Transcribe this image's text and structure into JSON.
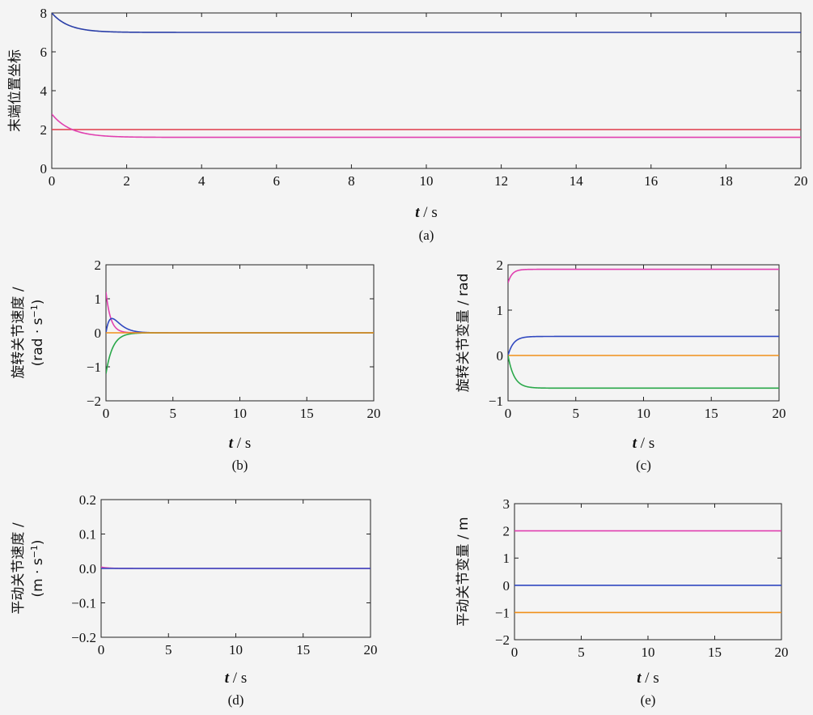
{
  "chart_data": [
    {
      "id": "a",
      "type": "line",
      "caption": "(a)",
      "xlabel_var": "t",
      "xlabel_unit": " / s",
      "ylabel": "末端位置坐标",
      "xlim": [
        0,
        20
      ],
      "ylim": [
        0,
        8
      ],
      "xticks": [
        0,
        2,
        4,
        6,
        8,
        10,
        12,
        14,
        16,
        18,
        20
      ],
      "yticks": [
        0,
        2,
        4,
        6,
        8
      ],
      "series": [
        {
          "color": "#2b3fa8",
          "start": 8.0,
          "end": 7.0,
          "tau": 0.45
        },
        {
          "color": "#e03a4a",
          "start": 2.0,
          "end": 2.0,
          "tau": 0.5
        },
        {
          "color": "#e040b0",
          "start": 2.8,
          "end": 1.6,
          "tau": 0.5
        }
      ]
    },
    {
      "id": "b",
      "type": "line",
      "caption": "(b)",
      "xlabel_var": "t",
      "xlabel_unit": " / s",
      "ylabel": "旋转关节速度 /",
      "ylabel2": "(rad · s",
      "ylabel2_sup": "−1",
      "ylabel2_end": ")",
      "xlim": [
        0,
        20
      ],
      "ylim": [
        -2,
        2
      ],
      "xticks": [
        0,
        5,
        10,
        15,
        20
      ],
      "yticks": [
        -2,
        -1,
        0,
        1,
        2
      ],
      "series": [
        {
          "color": "#e040b0",
          "shape": "decay",
          "peak": 1.2,
          "tau": 0.35
        },
        {
          "color": "#3048c0",
          "shape": "pulse",
          "peak": 0.42,
          "tau": 0.45
        },
        {
          "color": "#2aa84a",
          "shape": "decay",
          "peak": -1.2,
          "tau": 0.5
        },
        {
          "color": "#f0901a",
          "shape": "zero",
          "peak": 0,
          "tau": 1
        }
      ]
    },
    {
      "id": "c",
      "type": "line",
      "caption": "(c)",
      "xlabel_var": "t",
      "xlabel_unit": " / s",
      "ylabel": "旋转关节变量 / rad",
      "xlim": [
        0,
        20
      ],
      "ylim": [
        -1,
        2
      ],
      "xticks": [
        0,
        5,
        10,
        15,
        20
      ],
      "yticks": [
        -1,
        0,
        1,
        2
      ],
      "series": [
        {
          "color": "#e040b0",
          "start": 1.6,
          "end": 1.9,
          "tau": 0.3
        },
        {
          "color": "#3048c0",
          "start": 0.0,
          "end": 0.42,
          "tau": 0.4
        },
        {
          "color": "#f0901a",
          "start": 0.0,
          "end": 0.0,
          "tau": 1
        },
        {
          "color": "#2aa84a",
          "start": 0.0,
          "end": -0.72,
          "tau": 0.45
        }
      ]
    },
    {
      "id": "d",
      "type": "line",
      "caption": "(d)",
      "xlabel_var": "t",
      "xlabel_unit": " / s",
      "ylabel": "平动关节速度 /",
      "ylabel2": "(m · s",
      "ylabel2_sup": "−1",
      "ylabel2_end": ")",
      "xlim": [
        0,
        20
      ],
      "ylim": [
        -0.2,
        0.2
      ],
      "xticks": [
        0,
        5,
        10,
        15,
        20
      ],
      "yticks": [
        -0.2,
        -0.1,
        0.0,
        0.1,
        0.2
      ],
      "ytick_labels": [
        "−0.2",
        "−0.1",
        "0.0",
        "0.1",
        "0.2"
      ],
      "series": [
        {
          "color": "#e040b0",
          "shape": "decay",
          "peak": 0.004,
          "tau": 0.5
        },
        {
          "color": "#3048c0",
          "shape": "zero",
          "peak": 0,
          "tau": 1
        }
      ]
    },
    {
      "id": "e",
      "type": "line",
      "caption": "(e)",
      "xlabel_var": "t",
      "xlabel_unit": " / s",
      "ylabel": "平动关节变量 / m",
      "xlim": [
        0,
        20
      ],
      "ylim": [
        -2,
        3
      ],
      "xticks": [
        0,
        5,
        10,
        15,
        20
      ],
      "yticks": [
        -2,
        -1,
        0,
        1,
        2,
        3
      ],
      "series": [
        {
          "color": "#e040b0",
          "start": 2.0,
          "end": 2.0,
          "tau": 1
        },
        {
          "color": "#3048c0",
          "start": 0.0,
          "end": 0.0,
          "tau": 1
        },
        {
          "color": "#f0901a",
          "start": -1.0,
          "end": -1.0,
          "tau": 1
        }
      ]
    }
  ]
}
